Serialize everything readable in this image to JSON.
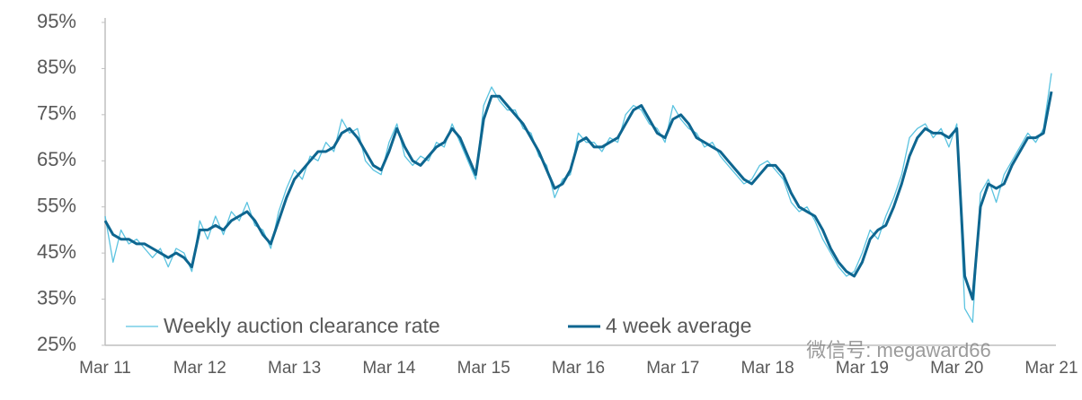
{
  "chart_data": {
    "type": "line",
    "categories": [
      "Mar 11",
      null,
      null,
      null,
      null,
      null,
      null,
      null,
      null,
      null,
      null,
      null,
      "Mar 12",
      null,
      null,
      null,
      null,
      null,
      null,
      null,
      null,
      null,
      null,
      null,
      "Mar 13",
      null,
      null,
      null,
      null,
      null,
      null,
      null,
      null,
      null,
      null,
      null,
      "Mar 14",
      null,
      null,
      null,
      null,
      null,
      null,
      null,
      null,
      null,
      null,
      null,
      "Mar 15",
      null,
      null,
      null,
      null,
      null,
      null,
      null,
      null,
      null,
      null,
      null,
      "Mar 16",
      null,
      null,
      null,
      null,
      null,
      null,
      null,
      null,
      null,
      null,
      null,
      "Mar 17",
      null,
      null,
      null,
      null,
      null,
      null,
      null,
      null,
      null,
      null,
      null,
      "Mar 18",
      null,
      null,
      null,
      null,
      null,
      null,
      null,
      null,
      null,
      null,
      null,
      "Mar 19",
      null,
      null,
      null,
      null,
      null,
      null,
      null,
      null,
      null,
      null,
      null,
      "Mar 20",
      null,
      null,
      null,
      null,
      null,
      null,
      null,
      null,
      null,
      null,
      null,
      "Mar 21"
    ],
    "series": [
      {
        "name": "Weekly auction clearance rate",
        "color": "#5bc3e0",
        "width": 1.3,
        "values": [
          53,
          43,
          50,
          47,
          48,
          46,
          44,
          46,
          42,
          46,
          45,
          41,
          52,
          48,
          53,
          49,
          54,
          52,
          56,
          51,
          50,
          46,
          54,
          59,
          63,
          61,
          66,
          65,
          69,
          67,
          74,
          71,
          72,
          65,
          63,
          62,
          69,
          73,
          66,
          64,
          66,
          65,
          69,
          68,
          73,
          69,
          65,
          61,
          77,
          81,
          78,
          76,
          76,
          72,
          71,
          66,
          64,
          57,
          61,
          62,
          71,
          69,
          69,
          67,
          70,
          69,
          75,
          77,
          76,
          73,
          72,
          69,
          77,
          74,
          72,
          71,
          68,
          69,
          66,
          64,
          62,
          60,
          61,
          64,
          65,
          63,
          61,
          56,
          54,
          55,
          52,
          48,
          45,
          42,
          40,
          41,
          45,
          50,
          48,
          53,
          57,
          62,
          70,
          72,
          73,
          70,
          72,
          68,
          73,
          33,
          30,
          58,
          61,
          56,
          62,
          65,
          68,
          71,
          69,
          72,
          84
        ]
      },
      {
        "name": "4 week average",
        "color": "#0e6690",
        "width": 3,
        "values": [
          52,
          49,
          48,
          48,
          47,
          47,
          46,
          45,
          44,
          45,
          44,
          42,
          50,
          50,
          51,
          50,
          52,
          53,
          54,
          52,
          49,
          47,
          52,
          57,
          61,
          63,
          65,
          67,
          67,
          68,
          71,
          72,
          70,
          67,
          64,
          63,
          67,
          72,
          68,
          65,
          64,
          66,
          68,
          69,
          72,
          70,
          66,
          62,
          74,
          79,
          79,
          77,
          75,
          73,
          70,
          67,
          63,
          59,
          60,
          63,
          69,
          70,
          68,
          68,
          69,
          70,
          73,
          76,
          77,
          74,
          71,
          70,
          74,
          75,
          73,
          70,
          69,
          68,
          67,
          65,
          63,
          61,
          60,
          62,
          64,
          64,
          62,
          58,
          55,
          54,
          53,
          50,
          46,
          43,
          41,
          40,
          43,
          48,
          50,
          51,
          55,
          60,
          66,
          70,
          72,
          71,
          71,
          70,
          72,
          40,
          35,
          55,
          60,
          59,
          60,
          64,
          67,
          70,
          70,
          71,
          80
        ]
      }
    ],
    "ylim": [
      25,
      95
    ],
    "yticks": [
      {
        "value": 25,
        "label": "25%"
      },
      {
        "value": 35,
        "label": "35%"
      },
      {
        "value": 45,
        "label": "45%"
      },
      {
        "value": 55,
        "label": "55%"
      },
      {
        "value": 65,
        "label": "65%"
      },
      {
        "value": 75,
        "label": "75%"
      },
      {
        "value": 85,
        "label": "85%"
      },
      {
        "value": 95,
        "label": "95%"
      }
    ],
    "grid": false,
    "legend": "bottom-left",
    "watermark": "微信号: megaward66"
  }
}
